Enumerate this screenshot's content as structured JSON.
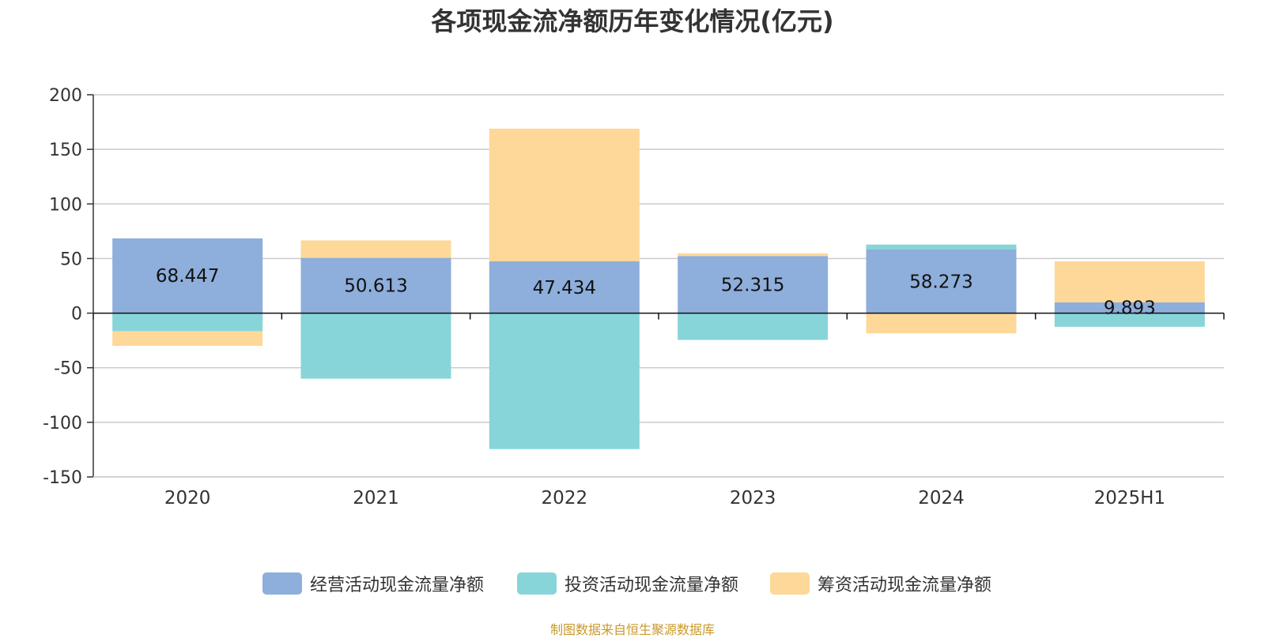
{
  "chart_data": {
    "type": "bar",
    "stacked": true,
    "title": "各项现金流净额历年变化情况(亿元)",
    "xlabel": "",
    "ylabel": "",
    "categories": [
      "2020",
      "2021",
      "2022",
      "2023",
      "2024",
      "2025H1"
    ],
    "ylim": [
      -150,
      200
    ],
    "yticks": [
      200,
      150,
      100,
      50,
      0,
      -50,
      -100,
      -150
    ],
    "grid": true,
    "legend_position": "bottom-center",
    "series": [
      {
        "name": "经营活动现金流量净额",
        "color": "#8eaedb",
        "values": [
          68.447,
          50.613,
          47.434,
          52.315,
          58.273,
          9.893
        ],
        "labels": [
          "68.447",
          "50.613",
          "47.434",
          "52.315",
          "58.273",
          "9.893"
        ]
      },
      {
        "name": "投资活动现金流量净额",
        "color": "#87d5d9",
        "values": [
          -16.5,
          -60,
          -124.5,
          -24.5,
          4.5,
          -12.5
        ]
      },
      {
        "name": "筹资活动现金流量净额",
        "color": "#fed898",
        "values": [
          -13.5,
          16,
          121.5,
          2.5,
          -18.5,
          37.5
        ]
      }
    ]
  },
  "source_note": "制图数据来自恒生聚源数据库",
  "source_color": "#c9992a"
}
